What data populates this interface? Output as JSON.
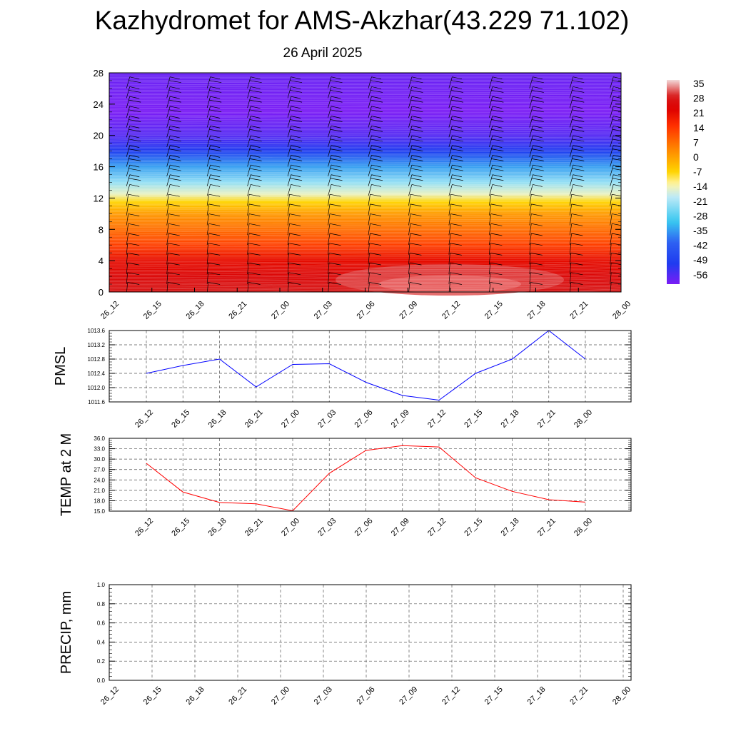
{
  "title": "Kazhydromet for AMS-Akzhar(43.229 71.102)",
  "subtitle": "26 April 2025",
  "chart_data": [
    {
      "type": "heatmap",
      "name": "cross-section",
      "x_categories": [
        "26_12",
        "26_15",
        "26_18",
        "26_21",
        "27_00",
        "27_03",
        "27_06",
        "27_09",
        "27_12",
        "27_15",
        "27_18",
        "27_21",
        "28_00"
      ],
      "yticks": [
        0,
        4,
        8,
        12,
        16,
        20,
        24,
        28
      ],
      "ylim": [
        0,
        28
      ],
      "colorbar_labels": [
        "35",
        "28",
        "21",
        "14",
        "7",
        "0",
        "-7",
        "-14",
        "-21",
        "-28",
        "-35",
        "-42",
        "-49",
        "-56"
      ],
      "colorbar_range": [
        -60,
        38
      ],
      "colors": {
        "cold": "#7a1cf5",
        "mid_blue": "#1e3cf0",
        "cyan": "#38c8f0",
        "pale": "#fff6a8",
        "yellow": "#ffd400",
        "orange": "#ff8c00",
        "red": "#dd0000",
        "hot": "#e85050"
      },
      "temperature_profile": [
        {
          "height": 0,
          "value": 30
        },
        {
          "height": 2,
          "value": 26
        },
        {
          "height": 4,
          "value": 22
        },
        {
          "height": 6,
          "value": 14
        },
        {
          "height": 8,
          "value": 8
        },
        {
          "height": 10,
          "value": 2
        },
        {
          "height": 11.5,
          "value": -6
        },
        {
          "height": 12.5,
          "value": -14
        },
        {
          "height": 14,
          "value": -22
        },
        {
          "height": 16,
          "value": -34
        },
        {
          "height": 18,
          "value": -50
        },
        {
          "height": 20,
          "value": -56
        },
        {
          "height": 23,
          "value": -60
        },
        {
          "height": 28,
          "value": -58
        }
      ],
      "grid": false,
      "wind_barbs": true
    },
    {
      "type": "line",
      "name": "pmsl",
      "ylabel": "PMSL",
      "categories": [
        "26_12",
        "26_15",
        "26_18",
        "26_21",
        "27_00",
        "27_03",
        "27_06",
        "27_09",
        "27_12",
        "27_15",
        "27_18",
        "27_21",
        "28_00"
      ],
      "yticks": [
        "1011.6",
        "1012.0",
        "1012.4",
        "1012.8",
        "1013.2",
        "1013.6"
      ],
      "ylim": [
        1011.6,
        1013.6
      ],
      "values": [
        1012.4,
        1012.62,
        1012.8,
        1012.02,
        1012.65,
        1012.67,
        1012.15,
        1011.78,
        1011.65,
        1012.4,
        1012.8,
        1013.6,
        1012.8
      ],
      "color": "#0000ff",
      "grid": true
    },
    {
      "type": "line",
      "name": "temp2m",
      "ylabel": "TEMP at 2 M",
      "categories": [
        "26_12",
        "26_15",
        "26_18",
        "26_21",
        "27_00",
        "27_03",
        "27_06",
        "27_09",
        "27_12",
        "27_15",
        "27_18",
        "27_21",
        "28_00"
      ],
      "yticks": [
        "15.0",
        "18.0",
        "21.0",
        "24.0",
        "27.0",
        "30.0",
        "33.0",
        "36.0"
      ],
      "ylim": [
        15,
        36
      ],
      "values": [
        28.8,
        20.5,
        17.5,
        17.1,
        15.1,
        25.9,
        32.5,
        33.9,
        33.5,
        24.6,
        20.7,
        18.3,
        17.6
      ],
      "color": "#ff0000",
      "grid": true
    },
    {
      "type": "line",
      "name": "precip",
      "ylabel": "PRECIP, mm",
      "categories": [
        "26_12",
        "26_15",
        "26_18",
        "26_21",
        "27_00",
        "27_03",
        "27_06",
        "27_09",
        "27_12",
        "27_15",
        "27_18",
        "27_21",
        "28_00"
      ],
      "yticks": [
        "0.0",
        "0.2",
        "0.4",
        "0.6",
        "0.8",
        "1.0"
      ],
      "ylim": [
        0,
        1
      ],
      "values": [
        0,
        0,
        0,
        0,
        0,
        0,
        0,
        0,
        0,
        0,
        0,
        0,
        0
      ],
      "color": "#008000",
      "grid": true
    }
  ]
}
